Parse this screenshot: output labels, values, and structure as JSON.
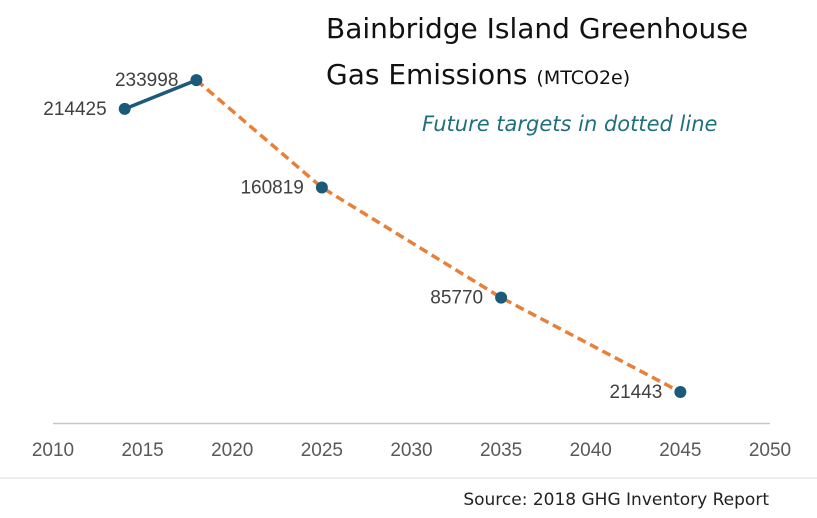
{
  "chart_data": {
    "type": "line",
    "title": "Bainbridge Island Greenhouse Gas Emissions",
    "units": "(MTCO2e)",
    "annotation": "Future targets in dotted line",
    "source": "Source: 2018 GHG Inventory Report",
    "x": [
      2014,
      2018,
      2025,
      2035,
      2045
    ],
    "series": [
      {
        "style": "solid",
        "color": "#1b5a7a",
        "marker_color": "#1b5a7a",
        "values": [
          214425,
          233998,
          null,
          null,
          null
        ]
      },
      {
        "style": "dashed",
        "color": "#e8803a",
        "marker_color": "#1b5a7a",
        "values": [
          null,
          233998,
          160819,
          85770,
          21443
        ]
      }
    ],
    "xlim": [
      2010,
      2050
    ],
    "xticks": [
      2010,
      2015,
      2020,
      2025,
      2030,
      2035,
      2040,
      2045,
      2050
    ],
    "ylim": [
      0,
      260000
    ]
  }
}
